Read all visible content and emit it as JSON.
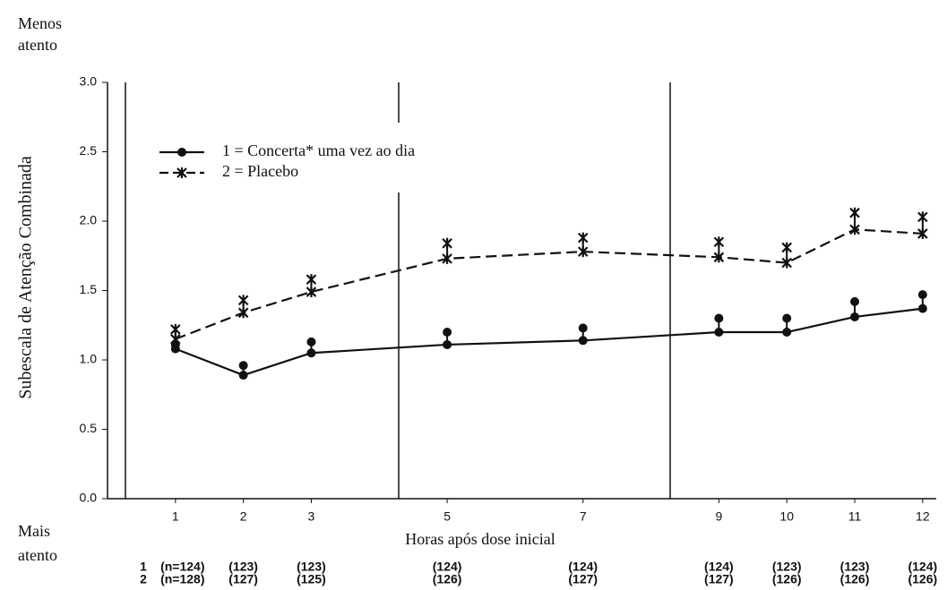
{
  "chart_data": {
    "type": "line",
    "top_label": [
      "Menos",
      "atento"
    ],
    "bottom_label": [
      "Mais",
      "atento"
    ],
    "y_label": "Subescala de Atenção Combinada",
    "x_label": "Horas após dose inicial",
    "x": [
      1,
      2,
      3,
      5,
      7,
      9,
      10,
      11,
      12
    ],
    "xticks": [
      1,
      2,
      3,
      5,
      7,
      9,
      10,
      11,
      12
    ],
    "xlim": [
      0,
      12.2
    ],
    "ylim": [
      0,
      3
    ],
    "yticks": [
      {
        "value": 0,
        "label": "0.0"
      },
      0.5,
      {
        "value": 1,
        "label": "1.0"
      },
      1.5,
      {
        "value": 2,
        "label": "2.0"
      },
      2.5,
      {
        "value": 3,
        "label": "3.0"
      }
    ],
    "series": [
      {
        "name": "1 = Concerta* uma vez ao dia",
        "color": "#111111",
        "dash": false,
        "marker": "dot",
        "values": [
          1.08,
          0.89,
          1.05,
          1.11,
          1.14,
          1.2,
          1.2,
          1.31,
          1.37
        ],
        "errors": [
          0.03,
          0.07,
          0.08,
          0.09,
          0.09,
          0.1,
          0.1,
          0.11,
          0.1
        ]
      },
      {
        "name": "2 = Placebo",
        "color": "#111111",
        "dash": true,
        "marker": "cross",
        "values": [
          1.15,
          1.34,
          1.49,
          1.73,
          1.78,
          1.74,
          1.7,
          1.94,
          1.91
        ],
        "errors": [
          0.07,
          0.09,
          0.09,
          0.11,
          0.1,
          0.11,
          0.11,
          0.12,
          0.12
        ]
      }
    ],
    "sample_sizes": [
      {
        "label": "1",
        "values": [
          "(n=124)",
          "(123)",
          "(123)",
          "(124)",
          "(124)",
          "(124)",
          "(123)",
          "(123)",
          "(124)"
        ]
      },
      {
        "label": "2",
        "values": [
          "(n=128)",
          "(127)",
          "(125)",
          "(126)",
          "(127)",
          "(127)",
          "(126)",
          "(126)",
          "(126)"
        ]
      }
    ]
  }
}
